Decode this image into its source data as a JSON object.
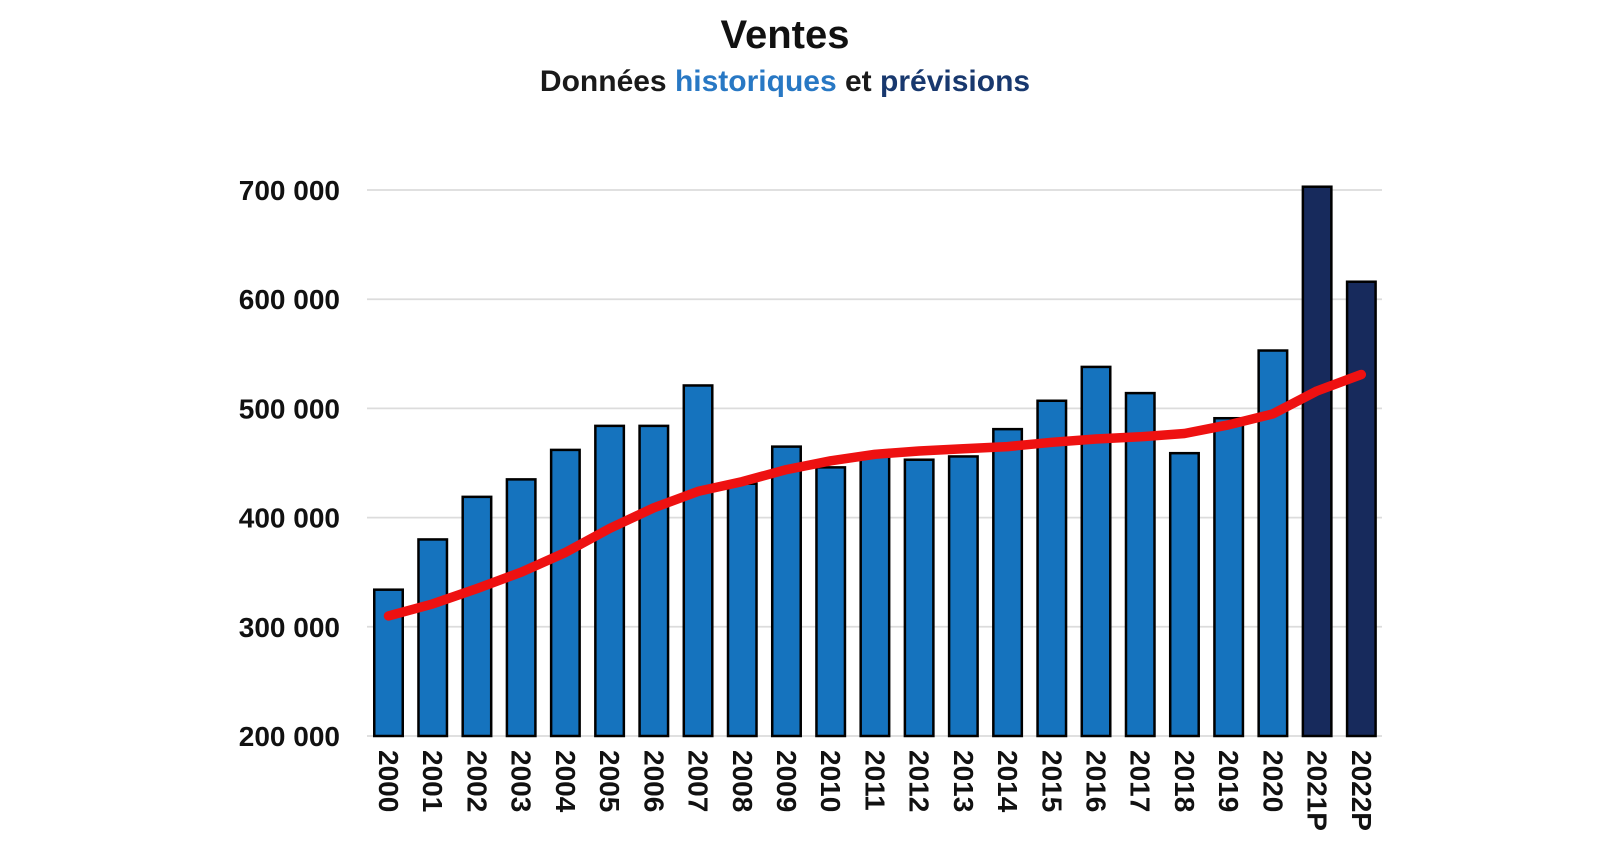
{
  "header": {
    "title": "Ventes",
    "subtitle_parts": [
      {
        "text": "Données ",
        "color": "#1a1a1a"
      },
      {
        "text": "historiques",
        "color": "#2878C4"
      },
      {
        "text": " et ",
        "color": "#1a1a1a"
      },
      {
        "text": "prévisions",
        "color": "#18386E"
      }
    ]
  },
  "chart_data": {
    "type": "bar",
    "title": "Ventes",
    "subtitle": "Données historiques et prévisions",
    "categories": [
      "2000",
      "2001",
      "2002",
      "2003",
      "2004",
      "2005",
      "2006",
      "2007",
      "2008",
      "2009",
      "2010",
      "2011",
      "2012",
      "2013",
      "2014",
      "2015",
      "2016",
      "2017",
      "2018",
      "2019",
      "2020",
      "2021P",
      "2022P"
    ],
    "series": [
      {
        "name": "ventes-bars",
        "type": "bar",
        "values": [
          334000,
          380000,
          419000,
          435000,
          462000,
          484000,
          484000,
          521000,
          431000,
          465000,
          446000,
          457000,
          453000,
          456000,
          481000,
          507000,
          538000,
          514000,
          459000,
          491000,
          553000,
          703000,
          616000
        ]
      },
      {
        "name": "tendance-line",
        "type": "line",
        "values": [
          310000,
          321000,
          335000,
          350000,
          368000,
          390000,
          409000,
          424000,
          433000,
          444000,
          452000,
          458000,
          461000,
          463000,
          465000,
          469000,
          472000,
          474000,
          477000,
          485000,
          495000,
          516000,
          531000
        ]
      }
    ],
    "forecast_categories": [
      "2021P",
      "2022P"
    ],
    "yticks": [
      {
        "value": 200000,
        "label": "200 000"
      },
      {
        "value": 300000,
        "label": "300 000"
      },
      {
        "value": 400000,
        "label": "400 000"
      },
      {
        "value": 500000,
        "label": "500 000"
      },
      {
        "value": 600000,
        "label": "600 000"
      },
      {
        "value": 700000,
        "label": "700 000"
      }
    ],
    "ylim": [
      200000,
      725000
    ],
    "grid": true,
    "legend": "none",
    "colors": {
      "bar_historical": "#1573BE",
      "bar_forecast": "#172A5C",
      "bar_outline": "#000000",
      "trend_line": "#EE1111",
      "gridline": "#DCDCDC",
      "axis_text": "#111111"
    }
  }
}
